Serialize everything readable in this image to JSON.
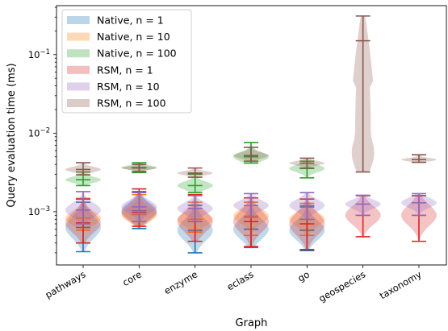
{
  "chart_data": {
    "type": "violin",
    "xlabel": "Graph",
    "ylabel": "Query evaluation time (ms)",
    "yscale": "log",
    "ylim": [
      0.00021,
      0.42
    ],
    "categories": [
      "pathways",
      "core",
      "enzyme",
      "eclass",
      "go",
      "geospecies",
      "taxonomy"
    ],
    "legend_position": "top-left",
    "ytick_labels": [
      {
        "value": 0.001,
        "base": "10",
        "exp": "−3"
      },
      {
        "value": 0.01,
        "base": "10",
        "exp": "−2"
      },
      {
        "value": 0.1,
        "base": "10",
        "exp": "−1"
      }
    ],
    "series": [
      {
        "name": "Native, n = 1",
        "color": "#1f77b4",
        "data": [
          {
            "category": "pathways",
            "min": 0.00031,
            "max": 0.00132,
            "median": 0.00063
          },
          {
            "category": "core",
            "min": 0.00061,
            "max": 0.0018,
            "median": 0.00103
          },
          {
            "category": "enzyme",
            "min": 0.0003,
            "max": 0.00121,
            "median": 0.00058
          },
          {
            "category": "eclass",
            "min": 0.00035,
            "max": 0.00132,
            "median": 0.0006
          },
          {
            "category": "go",
            "min": 0.00032,
            "max": 0.00115,
            "median": 0.00058
          }
        ]
      },
      {
        "name": "Native, n = 10",
        "color": "#ff7f0e",
        "data": [
          {
            "category": "pathways",
            "min": 0.00058,
            "max": 0.00148,
            "median": 0.00083
          },
          {
            "category": "core",
            "min": 0.00065,
            "max": 0.00165,
            "median": 0.00092
          },
          {
            "category": "enzyme",
            "min": 0.00055,
            "max": 0.00132,
            "median": 0.0008
          },
          {
            "category": "eclass",
            "min": 0.0005,
            "max": 0.00132,
            "median": 0.00088
          },
          {
            "category": "go",
            "min": 0.0005,
            "max": 0.00128,
            "median": 0.0008
          }
        ]
      },
      {
        "name": "Native, n = 100",
        "color": "#2ca02c",
        "data": [
          {
            "category": "pathways",
            "min": 0.00215,
            "max": 0.0032,
            "median": 0.00255
          },
          {
            "category": "core",
            "min": 0.00315,
            "max": 0.0042,
            "median": 0.00365
          },
          {
            "category": "enzyme",
            "min": 0.00175,
            "max": 0.003,
            "median": 0.00215
          },
          {
            "category": "eclass",
            "min": 0.00415,
            "max": 0.0076,
            "median": 0.005
          },
          {
            "category": "go",
            "min": 0.0027,
            "max": 0.0044,
            "median": 0.00355
          }
        ]
      },
      {
        "name": "RSM, n = 1",
        "color": "#d62728",
        "data": [
          {
            "category": "pathways",
            "min": 0.0004,
            "max": 0.00145,
            "median": 0.00072
          },
          {
            "category": "core",
            "min": 0.00065,
            "max": 0.00195,
            "median": 0.00098
          },
          {
            "category": "enzyme",
            "min": 0.00042,
            "max": 0.00165,
            "median": 0.00075
          },
          {
            "category": "eclass",
            "min": 0.00036,
            "max": 0.0015,
            "median": 0.00075
          },
          {
            "category": "go",
            "min": 0.00033,
            "max": 0.00145,
            "median": 0.0007
          },
          {
            "category": "geospecies",
            "min": 0.00048,
            "max": 0.0016,
            "median": 0.0009
          },
          {
            "category": "taxonomy",
            "min": 0.00042,
            "max": 0.0016,
            "median": 0.0009
          }
        ]
      },
      {
        "name": "RSM, n = 10",
        "color": "#9467bd",
        "data": [
          {
            "category": "pathways",
            "min": 0.0007,
            "max": 0.0018,
            "median": 0.00105
          },
          {
            "category": "core",
            "min": 0.00075,
            "max": 0.00175,
            "median": 0.00115
          },
          {
            "category": "enzyme",
            "min": 0.00075,
            "max": 0.0016,
            "median": 0.0011
          },
          {
            "category": "eclass",
            "min": 0.00085,
            "max": 0.0017,
            "median": 0.0012
          },
          {
            "category": "go",
            "min": 0.0008,
            "max": 0.00175,
            "median": 0.0012
          },
          {
            "category": "geospecies",
            "min": 0.0009,
            "max": 0.00162,
            "median": 0.00125
          },
          {
            "category": "taxonomy",
            "min": 0.0009,
            "max": 0.0017,
            "median": 0.0013
          }
        ]
      },
      {
        "name": "RSM, n = 100",
        "color": "#8c564b",
        "data": [
          {
            "category": "pathways",
            "min": 0.00295,
            "max": 0.0042,
            "median": 0.00345
          },
          {
            "category": "core",
            "min": 0.00325,
            "max": 0.004,
            "median": 0.0036
          },
          {
            "category": "enzyme",
            "min": 0.00275,
            "max": 0.0036,
            "median": 0.0031
          },
          {
            "category": "eclass",
            "min": 0.0044,
            "max": 0.0066,
            "median": 0.0052
          },
          {
            "category": "go",
            "min": 0.0036,
            "max": 0.0048,
            "median": 0.00415
          },
          {
            "category": "geospecies",
            "min": 0.0032,
            "max": 0.31,
            "median": 0.15
          },
          {
            "category": "taxonomy",
            "min": 0.00425,
            "max": 0.0053,
            "median": 0.0046
          }
        ]
      }
    ]
  }
}
